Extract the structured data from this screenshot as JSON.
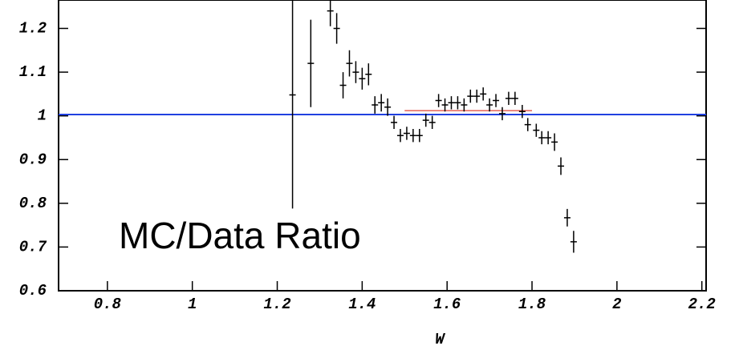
{
  "chart_data": {
    "type": "errorbar",
    "annotation": "MC/Data Ratio",
    "x_label": "W",
    "xlim": [
      0.685,
      2.21
    ],
    "ylim": [
      0.6,
      1.265
    ],
    "xticks": [
      0.8,
      1,
      1.2,
      1.4,
      1.6,
      1.8,
      2,
      2.2
    ],
    "yticks": [
      0.6,
      0.7,
      0.8,
      0.9,
      1,
      1.1,
      1.2
    ],
    "color": "#000000",
    "series": [
      {
        "x": [
          1.236,
          1.279,
          1.325,
          1.34,
          1.355,
          1.37,
          1.385,
          1.4,
          1.415,
          1.43,
          1.445,
          1.46,
          1.475,
          1.49,
          1.505,
          1.52,
          1.535,
          1.55,
          1.565,
          1.58,
          1.595,
          1.61,
          1.625,
          1.64,
          1.655,
          1.67,
          1.685,
          1.7,
          1.715,
          1.73,
          1.745,
          1.76,
          1.777,
          1.79,
          1.81,
          1.823,
          1.838,
          1.853,
          1.868,
          1.883,
          1.898
        ],
        "y": [
          1.048,
          1.12,
          1.24,
          1.2,
          1.07,
          1.12,
          1.1,
          1.085,
          1.095,
          1.025,
          1.03,
          1.02,
          0.985,
          0.955,
          0.96,
          0.955,
          0.955,
          0.99,
          0.985,
          1.035,
          1.025,
          1.03,
          1.03,
          1.025,
          1.045,
          1.045,
          1.05,
          1.025,
          1.035,
          1.005,
          1.04,
          1.04,
          1.01,
          0.98,
          0.967,
          0.95,
          0.95,
          0.94,
          0.885,
          0.767,
          0.712
        ],
        "err": [
          0.26,
          0.1,
          0.035,
          0.035,
          0.03,
          0.03,
          0.025,
          0.025,
          0.025,
          0.02,
          0.02,
          0.02,
          0.015,
          0.015,
          0.015,
          0.015,
          0.015,
          0.015,
          0.015,
          0.015,
          0.015,
          0.015,
          0.015,
          0.015,
          0.015,
          0.015,
          0.015,
          0.015,
          0.015,
          0.015,
          0.015,
          0.015,
          0.015,
          0.015,
          0.015,
          0.015,
          0.015,
          0.02,
          0.02,
          0.02,
          0.025
        ]
      }
    ],
    "reference_lines": [
      {
        "y": 1.003,
        "x": [
          0.685,
          2.21
        ],
        "color": "#2040e0"
      },
      {
        "y": 1.012,
        "x": [
          1.5,
          1.8
        ],
        "color": "#e04030"
      }
    ]
  }
}
